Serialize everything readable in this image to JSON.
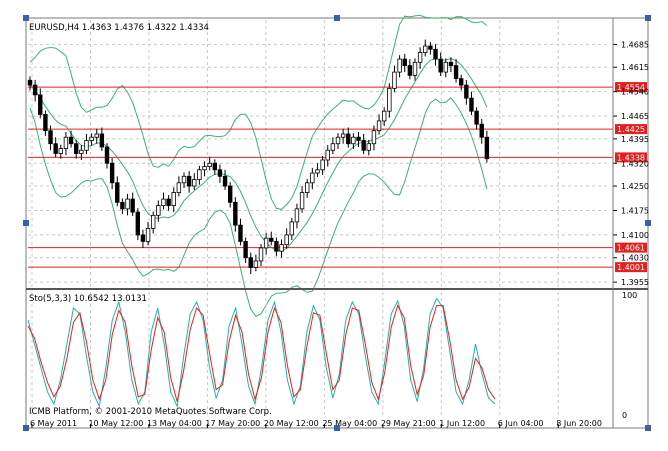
{
  "main_chart": {
    "header": "EURUSD,H4  1.4363 1.4376 1.4322 1.4334",
    "price_labels": [
      "1.4685",
      "1.4615",
      "1.4540",
      "1.4465",
      "1.4395",
      "1.4320",
      "1.4250",
      "1.4175",
      "1.4100",
      "1.4030",
      "1.3955"
    ],
    "levels": [
      {
        "price": 1.4554,
        "label": "1.4554"
      },
      {
        "price": 1.4425,
        "label": "1.4425"
      },
      {
        "price": 1.4338,
        "label": "1.4338"
      },
      {
        "price": 1.4061,
        "label": "1.4061"
      },
      {
        "price": 1.4001,
        "label": "1.4001"
      }
    ],
    "ylim": [
      1.394,
      1.476
    ],
    "colors": {
      "bull": "#ffffff",
      "bear": "#000000",
      "band": "#3cb371",
      "level": "#e32020",
      "level_label_bg": "#e32020",
      "grid": "#c8c8c8"
    }
  },
  "oscillator": {
    "header": "Sto(5,3,3) 10.6542 13.0131",
    "scale_top": "100",
    "scale_bottom": "0",
    "watermark": "ICMB Platform, © 2001-2010 MetaQuotes Software Corp.",
    "colors": {
      "main": "#20b2aa",
      "signal": "#e82020"
    }
  },
  "time_axis": [
    "6 May 2011",
    "10 May 12:00",
    "13 May 04:00",
    "17 May 20:00",
    "20 May 12:00",
    "25 May 04:00",
    "29 May 21:00",
    "1 Jun 12:00",
    "6 Jun 04:00",
    "8 Jun 20:00"
  ],
  "chart_data": {
    "type": "candlestick",
    "symbol": "EURUSD",
    "timeframe": "H4",
    "ohlc_last": {
      "open": 1.4363,
      "high": 1.4376,
      "low": 1.4322,
      "close": 1.4334
    },
    "close_path": [
      1.456,
      1.453,
      1.447,
      1.442,
      1.438,
      1.435,
      1.4365,
      1.44,
      1.438,
      1.435,
      1.436,
      1.439,
      1.44,
      1.441,
      1.437,
      1.432,
      1.426,
      1.42,
      1.418,
      1.421,
      1.417,
      1.41,
      1.408,
      1.412,
      1.416,
      1.419,
      1.421,
      1.419,
      1.423,
      1.426,
      1.428,
      1.425,
      1.427,
      1.43,
      1.431,
      1.432,
      1.43,
      1.428,
      1.425,
      1.42,
      1.413,
      1.408,
      1.403,
      1.4,
      1.402,
      1.406,
      1.409,
      1.408,
      1.405,
      1.407,
      1.41,
      1.414,
      1.418,
      1.423,
      1.426,
      1.429,
      1.43,
      1.433,
      1.436,
      1.438,
      1.44,
      1.441,
      1.438,
      1.44,
      1.439,
      1.436,
      1.438,
      1.442,
      1.445,
      1.448,
      1.455,
      1.46,
      1.464,
      1.462,
      1.459,
      1.463,
      1.466,
      1.468,
      1.467,
      1.464,
      1.46,
      1.463,
      1.462,
      1.458,
      1.456,
      1.452,
      1.448,
      1.444,
      1.44,
      1.4334
    ],
    "sto_main": [
      80,
      60,
      40,
      20,
      10,
      30,
      60,
      90,
      85,
      50,
      20,
      8,
      40,
      80,
      95,
      70,
      30,
      10,
      20,
      70,
      90,
      60,
      20,
      8,
      50,
      85,
      95,
      80,
      40,
      15,
      30,
      75,
      90,
      60,
      25,
      10,
      40,
      80,
      95,
      70,
      30,
      10,
      25,
      70,
      92,
      80,
      40,
      15,
      35,
      80,
      95,
      85,
      50,
      20,
      10,
      45,
      85,
      96,
      75,
      30,
      12,
      40,
      85,
      98,
      90,
      55,
      20,
      10,
      30,
      60,
      35,
      15,
      10
    ],
    "sto_signal": [
      75,
      65,
      45,
      28,
      16,
      25,
      48,
      78,
      86,
      62,
      30,
      14,
      30,
      68,
      88,
      78,
      42,
      16,
      18,
      55,
      82,
      70,
      32,
      12,
      38,
      72,
      90,
      84,
      52,
      22,
      26,
      62,
      84,
      70,
      35,
      14,
      32,
      70,
      90,
      78,
      42,
      16,
      22,
      58,
      86,
      84,
      52,
      22,
      30,
      68,
      90,
      88,
      60,
      28,
      14,
      36,
      74,
      92,
      82,
      42,
      18,
      34,
      74,
      92,
      92,
      64,
      30,
      14,
      24,
      48,
      40,
      22,
      14
    ]
  }
}
